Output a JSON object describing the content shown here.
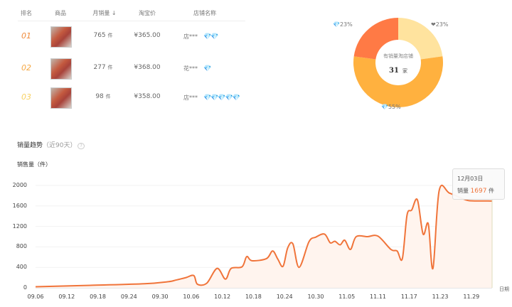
{
  "table": {
    "headers": [
      "排名",
      "商品",
      "月销量 ↓",
      "淘宝价",
      "店铺名称"
    ],
    "rows": [
      {
        "rank": "01",
        "sales": "765",
        "unit": "件",
        "price": "¥365.00",
        "shop": "店***",
        "badges": "💎💎",
        "rank_color": "#f08a3a"
      },
      {
        "rank": "02",
        "sales": "277",
        "unit": "件",
        "price": "¥368.00",
        "shop": "花***",
        "badges": "💎",
        "rank_color": "#f5a742"
      },
      {
        "rank": "03",
        "sales": "98",
        "unit": "件",
        "price": "¥358.00",
        "shop": "店***",
        "badges": "💎💎💎💎💎",
        "rank_color": "#f8d060"
      }
    ]
  },
  "donut": {
    "center_label": "有销量淘店铺",
    "center_value": "31",
    "center_unit": "家",
    "slices": [
      {
        "name": "heart",
        "label": "❤23%",
        "value": 23,
        "color": "#FFE39E"
      },
      {
        "name": "diamond",
        "label": "💎55%",
        "value": 55,
        "color": "#FFB13F"
      },
      {
        "name": "crown",
        "label": "💎23%",
        "value": 23,
        "color": "#FF7A45"
      }
    ]
  },
  "trend": {
    "title": "销量趋势",
    "subtitle": "（近90天）",
    "help": "?"
  },
  "tooltip": {
    "date": "12月03日",
    "label": "销量",
    "value": "1697",
    "unit": "件"
  },
  "chart_data": {
    "type": "area",
    "ylabel": "销售量（件）",
    "xlabel": "日期",
    "ylim": [
      0,
      2000
    ],
    "yticks": [
      "0",
      "400",
      "800",
      "1200",
      "1600",
      "2000"
    ],
    "xticks": [
      "09.06",
      "09.12",
      "09.18",
      "09.24",
      "09.30",
      "10.06",
      "10.12",
      "10.18",
      "10.24",
      "10.30",
      "11.05",
      "11.11",
      "11.17",
      "11.23",
      "11.29"
    ],
    "x_start": "09.06",
    "x_days": 88,
    "line_color": "#F0743A",
    "points": [
      [
        0,
        20
      ],
      [
        11,
        50
      ],
      [
        21,
        80
      ],
      [
        25.6,
        120
      ],
      [
        27,
        150
      ],
      [
        29,
        200
      ],
      [
        30.5,
        240
      ],
      [
        31.2,
        70
      ],
      [
        33,
        90
      ],
      [
        35,
        380
      ],
      [
        36.6,
        170
      ],
      [
        37.7,
        380
      ],
      [
        39.8,
        410
      ],
      [
        40.7,
        610
      ],
      [
        41.7,
        530
      ],
      [
        44.5,
        570
      ],
      [
        45.7,
        720
      ],
      [
        46.7,
        560
      ],
      [
        47.7,
        420
      ],
      [
        48.6,
        780
      ],
      [
        49.6,
        860
      ],
      [
        50.8,
        400
      ],
      [
        52.7,
        900
      ],
      [
        54,
        990
      ],
      [
        55.7,
        1050
      ],
      [
        56.8,
        880
      ],
      [
        57.7,
        910
      ],
      [
        58.7,
        840
      ],
      [
        59.6,
        930
      ],
      [
        60.7,
        750
      ],
      [
        61.8,
        1000
      ],
      [
        64,
        1000
      ],
      [
        66,
        1010
      ],
      [
        68.5,
        750
      ],
      [
        69.7,
        720
      ],
      [
        70.7,
        570
      ],
      [
        71.6,
        1420
      ],
      [
        72.5,
        1520
      ],
      [
        73.6,
        1720
      ],
      [
        74.7,
        1050
      ],
      [
        75.7,
        1250
      ],
      [
        76.6,
        380
      ],
      [
        77.8,
        1900
      ],
      [
        79.8,
        1850
      ],
      [
        82.9,
        1720
      ],
      [
        84.2,
        1700
      ],
      [
        88,
        1697
      ]
    ]
  }
}
